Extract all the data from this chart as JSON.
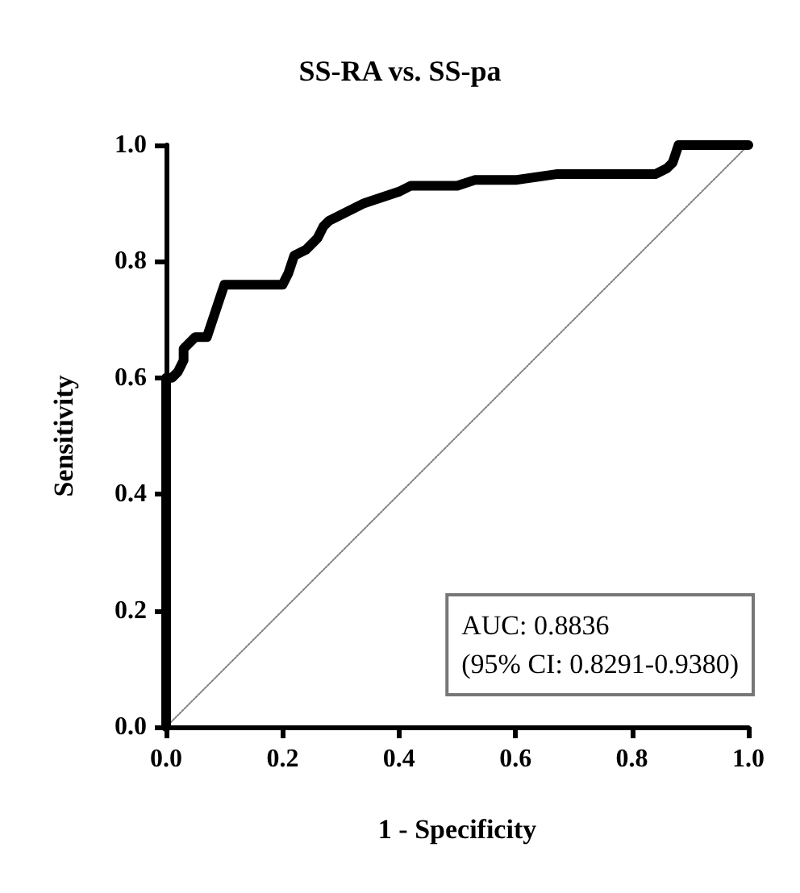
{
  "chart_data": {
    "type": "line",
    "title": "SS-RA vs. SS-pa",
    "xlabel": "1 - Specificity",
    "ylabel": "Sensitivity",
    "xlim": [
      0,
      1
    ],
    "ylim": [
      0,
      1
    ],
    "xticks": [
      {
        "value": 0,
        "label": "0.0"
      },
      0.2,
      0.4,
      0.6,
      0.8,
      {
        "value": 1,
        "label": "1.0"
      }
    ],
    "yticks": [
      {
        "value": 0,
        "label": "0.0"
      },
      0.2,
      0.4,
      0.6,
      0.8,
      {
        "value": 1,
        "label": "1.0"
      }
    ],
    "grid": false,
    "marker": "none",
    "series": [
      {
        "color": "#000000",
        "line_style": "solid",
        "x": [
          0,
          0,
          0,
          0.01,
          0.02,
          0.03,
          0.03,
          0.05,
          0.07,
          0.08,
          0.09,
          0.1,
          0.14,
          0.2,
          0.21,
          0.22,
          0.24,
          0.26,
          0.27,
          0.28,
          0.3,
          0.32,
          0.34,
          0.37,
          0.4,
          0.42,
          0.45,
          0.5,
          0.53,
          0.6,
          0.67,
          0.75,
          0.84,
          0.86,
          0.87,
          0.88,
          0.95,
          1
        ],
        "values": [
          0,
          0.3,
          0.6,
          0.6,
          0.61,
          0.63,
          0.65,
          0.67,
          0.67,
          0.7,
          0.73,
          0.76,
          0.76,
          0.76,
          0.78,
          0.81,
          0.82,
          0.84,
          0.86,
          0.87,
          0.88,
          0.89,
          0.9,
          0.91,
          0.92,
          0.93,
          0.93,
          0.93,
          0.94,
          0.94,
          0.95,
          0.95,
          0.95,
          0.96,
          0.97,
          1,
          1,
          1
        ]
      },
      {
        "color": "#808080",
        "line_style": "dotted",
        "x": [
          0,
          1
        ],
        "values": [
          0,
          1
        ]
      }
    ],
    "annotations": [
      "AUC: 0.8836\n(95% CI: 0.8291-0.9380)"
    ]
  }
}
